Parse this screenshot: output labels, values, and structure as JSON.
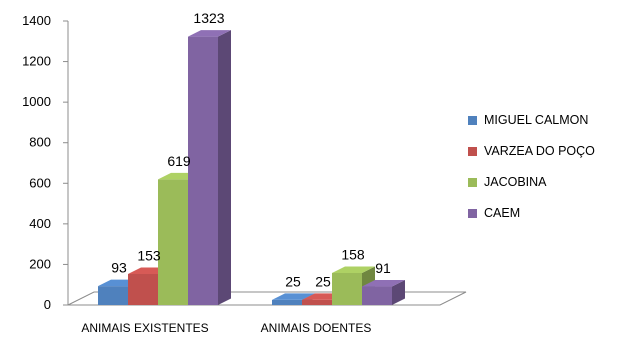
{
  "chart_data": {
    "type": "bar",
    "categories": [
      "ANIMAIS EXISTENTES",
      "ANIMAIS DOENTES"
    ],
    "series": [
      {
        "name": "MIGUEL CALMON",
        "values": [
          93,
          25
        ],
        "color": "#4F81BD"
      },
      {
        "name": "VARZEA DO POÇO",
        "values": [
          153,
          25
        ],
        "color": "#C0504D"
      },
      {
        "name": "JACOBINA",
        "values": [
          619,
          158
        ],
        "color": "#9BBB59"
      },
      {
        "name": "CAEM",
        "values": [
          1323,
          91
        ],
        "color": "#8064A2"
      }
    ],
    "ylim": [
      0,
      1400
    ],
    "yticks": [
      "0",
      "200",
      "400",
      "600",
      "800",
      "1000",
      "1200",
      "1400"
    ],
    "data_labels": [
      [
        "93",
        "25"
      ],
      [
        "153",
        "25"
      ],
      [
        "619",
        "158"
      ],
      [
        "1323",
        "91"
      ]
    ],
    "legend_position": "right",
    "style": "3d-clustered-column",
    "grid": false
  }
}
